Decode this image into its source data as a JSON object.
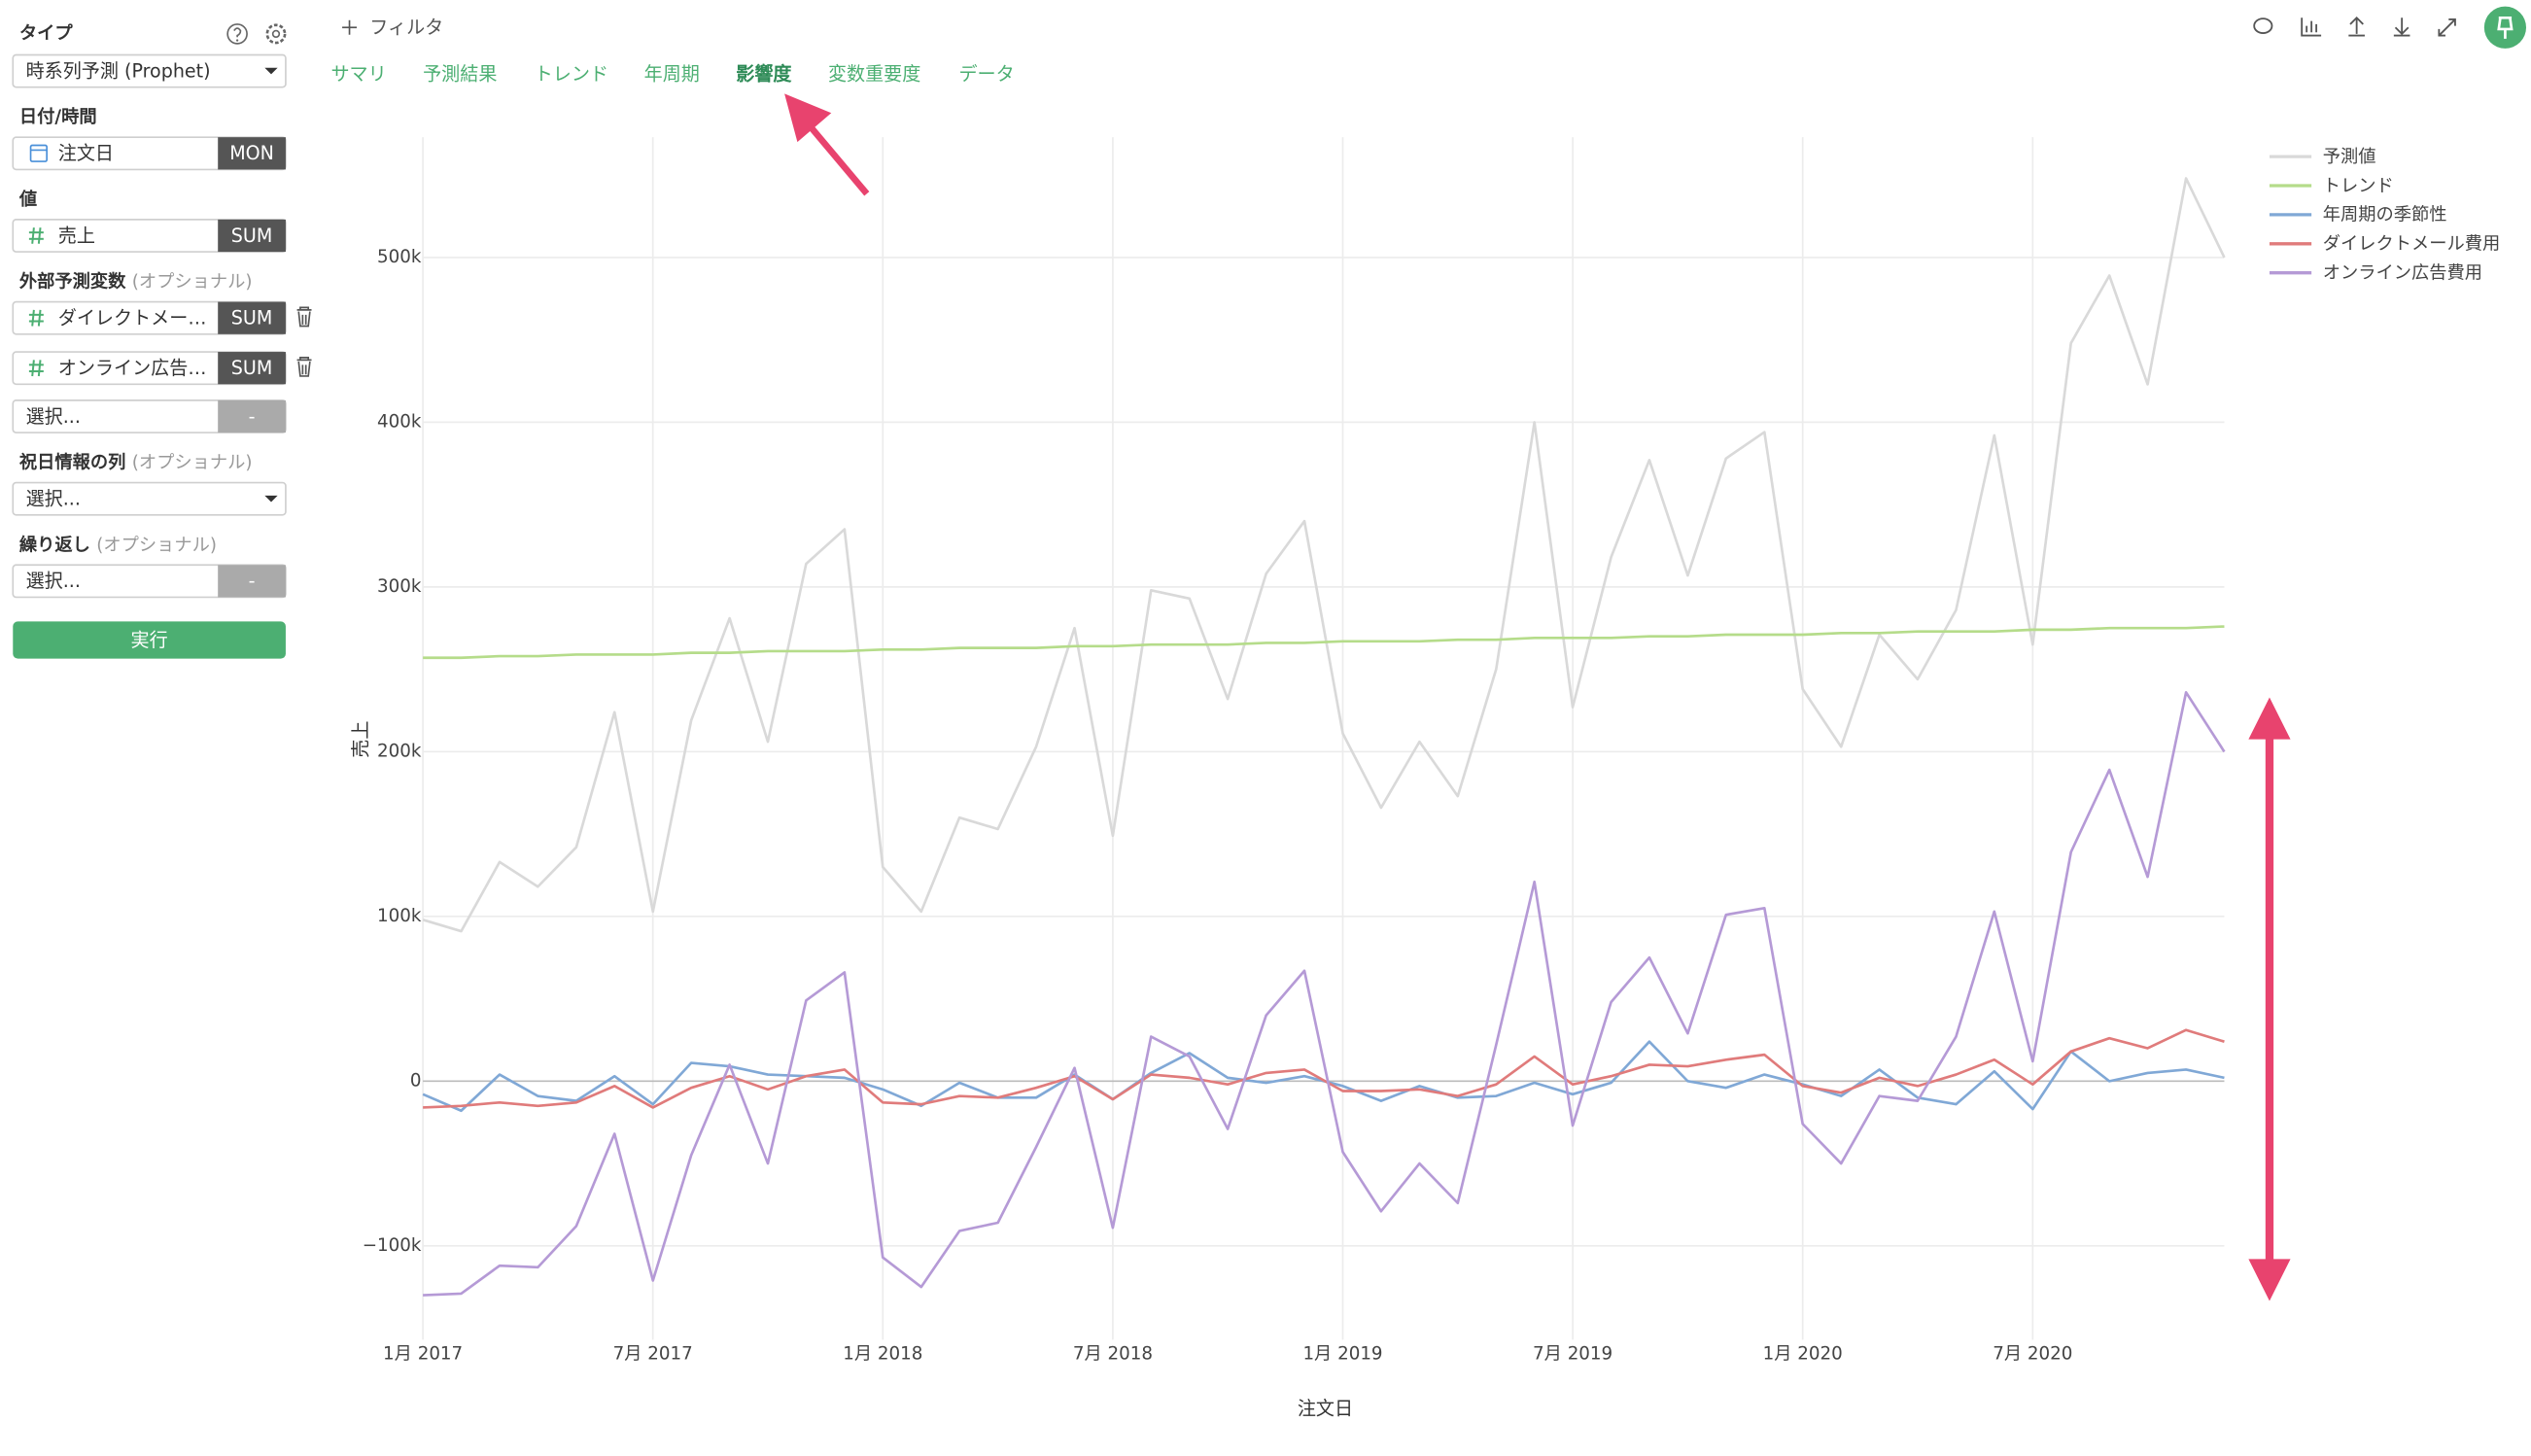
{
  "sidebar": {
    "type": {
      "label": "タイプ",
      "value": "時系列予測 (Prophet)"
    },
    "datetime": {
      "label": "日付/時間",
      "column": "注文日",
      "aggregation": "MON"
    },
    "value": {
      "label": "値",
      "column": "売上",
      "aggregation": "SUM"
    },
    "regressors": {
      "label": "外部予測変数",
      "hint": "(オプショナル)",
      "rows": [
        {
          "column": "ダイレクトメー…",
          "aggregation": "SUM"
        },
        {
          "column": "オンライン広告…",
          "aggregation": "SUM"
        },
        {
          "column": "選択...",
          "aggregation": "-"
        }
      ]
    },
    "holidays": {
      "label": "祝日情報の列",
      "hint": "(オプショナル)",
      "value": "選択..."
    },
    "repeat": {
      "label": "繰り返し",
      "hint": "(オプショナル)",
      "column": "選択...",
      "aggregation": "-"
    },
    "run_button": "実行"
  },
  "toolbar": {
    "filter": "フィルタ",
    "tabs": [
      "サマリ",
      "予測結果",
      "トレンド",
      "年周期",
      "影響度",
      "変数重要度",
      "データ"
    ],
    "active_tab": 4
  },
  "chart_data": {
    "type": "line",
    "x_label": "注文日",
    "y_label": "売上",
    "x": [
      "2017-01",
      "2017-02",
      "2017-03",
      "2017-04",
      "2017-05",
      "2017-06",
      "2017-07",
      "2017-08",
      "2017-09",
      "2017-10",
      "2017-11",
      "2017-12",
      "2018-01",
      "2018-02",
      "2018-03",
      "2018-04",
      "2018-05",
      "2018-06",
      "2018-07",
      "2018-08",
      "2018-09",
      "2018-10",
      "2018-11",
      "2018-12",
      "2019-01",
      "2019-02",
      "2019-03",
      "2019-04",
      "2019-05",
      "2019-06",
      "2019-07",
      "2019-08",
      "2019-09",
      "2019-10",
      "2019-11",
      "2019-12",
      "2020-01",
      "2020-02",
      "2020-03",
      "2020-04",
      "2020-05",
      "2020-06",
      "2020-07",
      "2020-08",
      "2020-09",
      "2020-10",
      "2020-11",
      "2020-12"
    ],
    "xticks": [
      {
        "value": "2017-01",
        "label": "1月 2017"
      },
      {
        "value": "2017-07",
        "label": "7月 2017"
      },
      {
        "value": "2018-01",
        "label": "1月 2018"
      },
      {
        "value": "2018-07",
        "label": "7月 2018"
      },
      {
        "value": "2019-01",
        "label": "1月 2019"
      },
      {
        "value": "2019-07",
        "label": "7月 2019"
      },
      {
        "value": "2020-01",
        "label": "1月 2020"
      },
      {
        "value": "2020-07",
        "label": "7月 2020"
      }
    ],
    "ylim": [
      -157000,
      573000
    ],
    "yticks": [
      {
        "value": -100000,
        "label": "−100k"
      },
      0,
      {
        "value": 100000,
        "label": "100k"
      },
      {
        "value": 200000,
        "label": "200k"
      },
      {
        "value": 300000,
        "label": "300k"
      },
      {
        "value": 400000,
        "label": "400k"
      },
      {
        "value": 500000,
        "label": "500k"
      }
    ],
    "grid": true,
    "legend": "top-right",
    "series": [
      {
        "name": "予測値",
        "color": "#d9d9d9",
        "values": [
          98000,
          91000,
          133000,
          118000,
          142000,
          224000,
          103000,
          219000,
          281000,
          206000,
          314000,
          335000,
          130000,
          103000,
          160000,
          153000,
          203000,
          275000,
          149000,
          298000,
          293000,
          232000,
          308000,
          340000,
          211000,
          166000,
          206000,
          173000,
          250000,
          400000,
          227000,
          318000,
          377000,
          307000,
          378000,
          394000,
          238000,
          203000,
          271000,
          244000,
          286000,
          392000,
          265000,
          448000,
          489000,
          423000,
          548000,
          500000
        ]
      },
      {
        "name": "トレンド",
        "color": "#b5dc8a",
        "values": [
          257000,
          257000,
          258000,
          258000,
          259000,
          259000,
          259000,
          260000,
          260000,
          261000,
          261000,
          261000,
          262000,
          262000,
          263000,
          263000,
          263000,
          264000,
          264000,
          265000,
          265000,
          265000,
          266000,
          266000,
          267000,
          267000,
          267000,
          268000,
          268000,
          269000,
          269000,
          269000,
          270000,
          270000,
          271000,
          271000,
          271000,
          272000,
          272000,
          273000,
          273000,
          273000,
          274000,
          274000,
          275000,
          275000,
          275000,
          276000
        ]
      },
      {
        "name": "年周期の季節性",
        "color": "#80a8d6",
        "values": [
          -8000,
          -18000,
          4000,
          -9000,
          -12000,
          3000,
          -14000,
          11000,
          9000,
          4000,
          3000,
          2000,
          -5000,
          -15000,
          -1000,
          -10000,
          -10000,
          4000,
          -11000,
          5000,
          17000,
          2000,
          -1000,
          3000,
          -3000,
          -12000,
          -3000,
          -10000,
          -9000,
          -1000,
          -8000,
          -1000,
          24000,
          0,
          -4000,
          4000,
          -2000,
          -9000,
          7000,
          -10000,
          -14000,
          6000,
          -17000,
          18000,
          0,
          5000,
          7000,
          2000
        ]
      },
      {
        "name": "ダイレクトメール費用",
        "color": "#e07b7b",
        "values": [
          -16000,
          -15000,
          -13000,
          -15000,
          -13000,
          -3000,
          -16000,
          -4000,
          3000,
          -5000,
          3000,
          7000,
          -13000,
          -14000,
          -9000,
          -10000,
          -4000,
          3000,
          -11000,
          4000,
          2000,
          -2000,
          5000,
          7000,
          -6000,
          -6000,
          -5000,
          -9000,
          -2000,
          15000,
          -2000,
          3000,
          10000,
          9000,
          13000,
          16000,
          -3000,
          -7000,
          2000,
          -3000,
          4000,
          13000,
          -2000,
          18000,
          26000,
          20000,
          31000,
          24000
        ]
      },
      {
        "name": "オンライン広告費用",
        "color": "#b59ad6",
        "values": [
          -130000,
          -129000,
          -112000,
          -113000,
          -88000,
          -32000,
          -121000,
          -45000,
          10000,
          -50000,
          49000,
          66000,
          -107000,
          -125000,
          -91000,
          -86000,
          -40000,
          8000,
          -89000,
          27000,
          15000,
          -29000,
          40000,
          67000,
          -43000,
          -79000,
          -50000,
          -74000,
          22000,
          121000,
          -27000,
          48000,
          75000,
          29000,
          101000,
          105000,
          -26000,
          -50000,
          -9000,
          -12000,
          27000,
          103000,
          12000,
          139000,
          189000,
          124000,
          236000,
          200000
        ]
      }
    ]
  }
}
